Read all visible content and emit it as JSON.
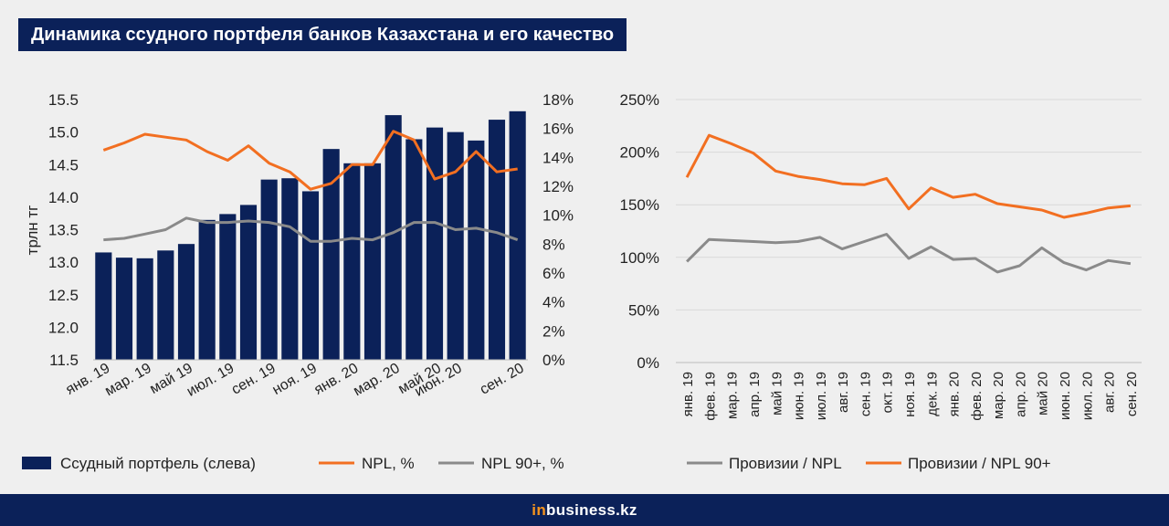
{
  "title": "Динамика ссудного портфеля банков Казахстана и его качество",
  "brand": {
    "prefix": "in",
    "name": "business.kz"
  },
  "colors": {
    "navy": "#0b2159",
    "orange": "#f26f21",
    "gray": "#8a8a8a",
    "background": "#efefef",
    "grid": "#d9d9d9"
  },
  "chart_data": [
    {
      "type": "bar",
      "categories": [
        "янв. 19",
        "фев. 19",
        "мар. 19",
        "апр. 19",
        "май 19",
        "июн. 19",
        "июл. 19",
        "авг. 19",
        "сен. 19",
        "окт. 19",
        "ноя. 19",
        "дек. 19",
        "янв. 20",
        "фев. 20",
        "мар. 20",
        "апр. 20",
        "май 20",
        "июн. 20",
        "июл. 20",
        "авг. 20",
        "сен. 20"
      ],
      "tick_labels": [
        "янв. 19",
        "мар. 19",
        "май 19",
        "июл. 19",
        "сен. 19",
        "ноя. 19",
        "янв. 20",
        "мар. 20",
        "май 20",
        "июн. 20",
        "сен. 20"
      ],
      "tick_indices": [
        0,
        2,
        4,
        6,
        8,
        10,
        12,
        14,
        16,
        17,
        20
      ],
      "ylabel": "трлн тг",
      "ylim": [
        11.5,
        15.5
      ],
      "yticks": [
        "11.5",
        "12.0",
        "12.5",
        "13.0",
        "13.5",
        "14.0",
        "14.5",
        "15.0",
        "15.5"
      ],
      "y2lim": [
        0,
        18
      ],
      "y2ticks": [
        "0%",
        "2%",
        "4%",
        "6%",
        "8%",
        "10%",
        "12%",
        "14%",
        "16%",
        "18%"
      ],
      "series": [
        {
          "name": "Ссудный портфель (слева)",
          "kind": "bar",
          "axis": "left",
          "color": "#0b2159",
          "values": [
            13.15,
            13.07,
            13.06,
            13.18,
            13.28,
            13.65,
            13.74,
            13.88,
            14.27,
            14.29,
            14.09,
            14.74,
            14.52,
            14.52,
            15.26,
            14.89,
            15.07,
            15.0,
            14.87,
            15.19,
            15.32
          ]
        },
        {
          "name": "NPL, %",
          "kind": "line",
          "axis": "right",
          "color": "#f26f21",
          "values": [
            14.5,
            15.0,
            15.6,
            15.4,
            15.2,
            14.4,
            13.8,
            14.8,
            13.6,
            13.0,
            11.8,
            12.2,
            13.5,
            13.5,
            15.8,
            15.2,
            12.5,
            13.0,
            14.4,
            13.0,
            13.2
          ]
        },
        {
          "name": "NPL 90+, %",
          "kind": "line",
          "axis": "right",
          "color": "#8a8a8a",
          "values": [
            8.3,
            8.4,
            8.7,
            9.0,
            9.8,
            9.5,
            9.5,
            9.6,
            9.5,
            9.2,
            8.2,
            8.2,
            8.4,
            8.3,
            8.8,
            9.5,
            9.5,
            9.0,
            9.1,
            8.8,
            8.3
          ]
        }
      ]
    },
    {
      "type": "line",
      "categories": [
        "янв. 19",
        "фев. 19",
        "мар. 19",
        "апр. 19",
        "май 19",
        "июн. 19",
        "июл. 19",
        "авг. 19",
        "сен. 19",
        "окт. 19",
        "ноя. 19",
        "дек. 19",
        "янв. 20",
        "фев. 20",
        "мар. 20",
        "апр. 20",
        "май 20",
        "июн. 20",
        "июл. 20",
        "авг. 20",
        "сен. 20"
      ],
      "ylim": [
        0,
        250
      ],
      "yticks": [
        "0%",
        "50%",
        "100%",
        "150%",
        "200%",
        "250%"
      ],
      "series": [
        {
          "name": "Провизии / NPL",
          "color": "#8a8a8a",
          "values": [
            96,
            117,
            116,
            115,
            114,
            115,
            119,
            108,
            115,
            122,
            99,
            110,
            98,
            99,
            86,
            92,
            109,
            95,
            88,
            97,
            94
          ]
        },
        {
          "name": "Провизии / NPL 90+",
          "color": "#f26f21",
          "values": [
            176,
            216,
            208,
            199,
            182,
            177,
            174,
            170,
            169,
            175,
            146,
            166,
            157,
            160,
            151,
            148,
            145,
            138,
            142,
            147,
            149
          ]
        }
      ]
    }
  ]
}
